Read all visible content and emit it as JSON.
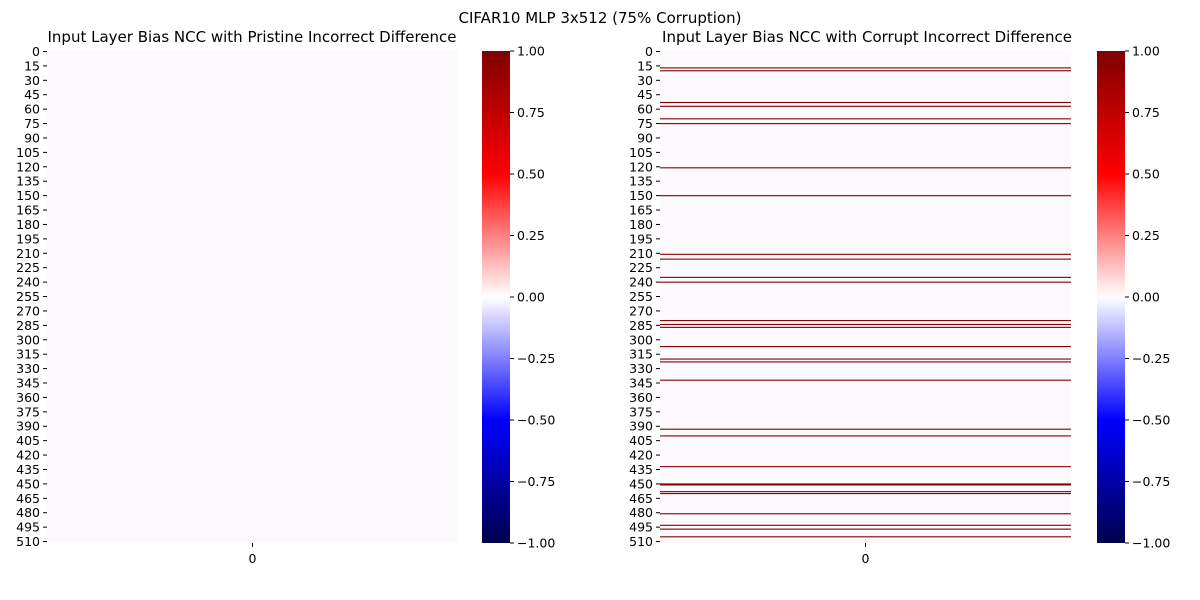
{
  "figure": {
    "suptitle": "CIFAR10 MLP 3x512 (75% Corruption)"
  },
  "colormap": {
    "name": "seismic",
    "stops": [
      "#00004c",
      "#0000ff",
      "#ffffff",
      "#ff0000",
      "#7f0000"
    ],
    "cell_color": "#fdfafd"
  },
  "chart_data": [
    {
      "type": "heatmap",
      "title": "Input Layer Bias NCC with Pristine Incorrect Difference",
      "xlabel": "",
      "ylabel": "",
      "x_tick_labels": [
        "0"
      ],
      "y_tick_labels": [
        "0",
        "15",
        "30",
        "45",
        "60",
        "75",
        "90",
        "105",
        "120",
        "135",
        "150",
        "165",
        "180",
        "195",
        "210",
        "225",
        "240",
        "255",
        "270",
        "285",
        "300",
        "315",
        "330",
        "345",
        "360",
        "375",
        "390",
        "405",
        "420",
        "435",
        "450",
        "465",
        "480",
        "495",
        "510"
      ],
      "n_rows": 512,
      "n_cols": 1,
      "background_value": 0.0,
      "highlight_rows": [],
      "highlight_value": 1.0,
      "colorbar": {
        "vmin": -1.0,
        "vmax": 1.0,
        "tick_labels": [
          "1.00",
          "0.75",
          "0.50",
          "0.25",
          "0.00",
          "−0.25",
          "−0.50",
          "−0.75",
          "−1.00"
        ]
      }
    },
    {
      "type": "heatmap",
      "title": "Input Layer Bias NCC with Corrupt Incorrect Difference",
      "xlabel": "",
      "ylabel": "",
      "x_tick_labels": [
        "0"
      ],
      "y_tick_labels": [
        "0",
        "15",
        "30",
        "45",
        "60",
        "75",
        "90",
        "105",
        "120",
        "135",
        "150",
        "165",
        "180",
        "195",
        "210",
        "225",
        "240",
        "255",
        "270",
        "285",
        "300",
        "315",
        "330",
        "345",
        "360",
        "375",
        "390",
        "405",
        "420",
        "435",
        "450",
        "465",
        "480",
        "495",
        "510"
      ],
      "n_rows": 512,
      "n_cols": 1,
      "background_value": 0.0,
      "highlight_rows": [
        17,
        20,
        53,
        57,
        70,
        75,
        121,
        150,
        211,
        216,
        235,
        240,
        280,
        284,
        287,
        307,
        320,
        323,
        342,
        393,
        400,
        432,
        450,
        451,
        458,
        460,
        481,
        493,
        497,
        505
      ],
      "highlight_value": 1.0,
      "colorbar": {
        "vmin": -1.0,
        "vmax": 1.0,
        "tick_labels": [
          "1.00",
          "0.75",
          "0.50",
          "0.25",
          "0.00",
          "−0.25",
          "−0.50",
          "−0.75",
          "−1.00"
        ]
      }
    }
  ]
}
